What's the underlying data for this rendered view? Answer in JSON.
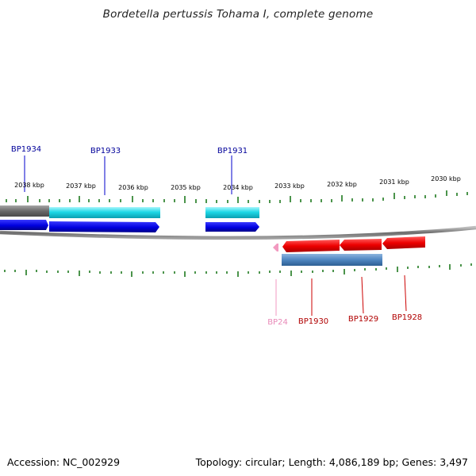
{
  "title": "Bordetella pertussis Tohama I, complete genome",
  "footer": {
    "accession": "Accession: NC_002929",
    "summary": "Topology: circular; Length: 4,086,189 bp; Genes: 3,497"
  },
  "colors": {
    "backbone": "#7a7a7a",
    "tick": "#1f7a1f",
    "forward_gene": "#0000ee",
    "forward_cds": "#22d8e6",
    "reverse_gene": "#ee0000",
    "reverse_cds": "#4f86c0",
    "pseudo_gene": "#f29ac0",
    "repeat": "#707070",
    "forward_label": "#00009a",
    "reverse_label": "#b00000",
    "pseudo_label": "#e88ab8"
  },
  "scale": {
    "tick_labels": [
      "2038 kbp",
      "2037 kbp",
      "2036 kbp",
      "2035 kbp",
      "2034 kbp",
      "2033 kbp",
      "2032 kbp",
      "2031 kbp",
      "2030 kbp"
    ]
  },
  "genes": {
    "forward": [
      {
        "name": "BP1934",
        "color": "#00009a"
      },
      {
        "name": "BP1933",
        "color": "#00009a"
      },
      {
        "name": "BP1931",
        "color": "#00009a"
      }
    ],
    "reverse": [
      {
        "name": "BP24",
        "color": "#e88ab8"
      },
      {
        "name": "BP1930",
        "color": "#b00000"
      },
      {
        "name": "BP1929",
        "color": "#b00000"
      },
      {
        "name": "BP1928",
        "color": "#b00000"
      }
    ]
  }
}
